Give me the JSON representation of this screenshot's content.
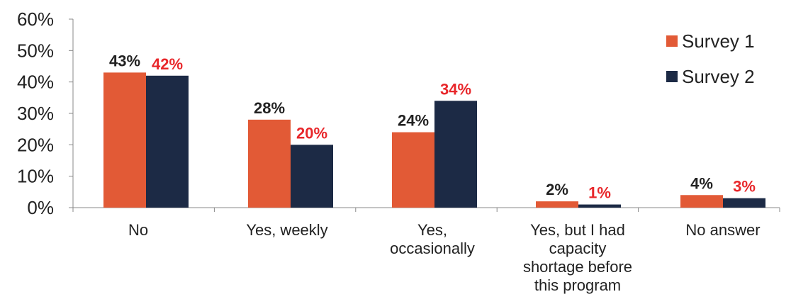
{
  "chart_data": {
    "type": "bar",
    "categories": [
      [
        "No"
      ],
      [
        "Yes, weekly"
      ],
      [
        "Yes,",
        "occasionally"
      ],
      [
        "Yes, but I had",
        "capacity",
        "shortage  before",
        "this program"
      ],
      [
        "No answer"
      ]
    ],
    "series": [
      {
        "name": "Survey 1",
        "values": [
          43,
          28,
          24,
          2,
          4
        ],
        "labels": [
          "43%",
          "28%",
          "24%",
          "2%",
          "4%"
        ],
        "color": "#e25a36",
        "label_color": "#222222"
      },
      {
        "name": "Survey 2",
        "values": [
          42,
          20,
          34,
          1,
          3
        ],
        "labels": [
          "42%",
          "20%",
          "34%",
          "1%",
          "3%"
        ],
        "color": "#1c2a45",
        "label_color": "#e8272b"
      }
    ],
    "ylim": [
      0,
      60
    ],
    "yticks": [
      "0%",
      "10%",
      "20%",
      "30%",
      "40%",
      "50%",
      "60%"
    ],
    "legend_position": "top-right",
    "grid": false
  }
}
